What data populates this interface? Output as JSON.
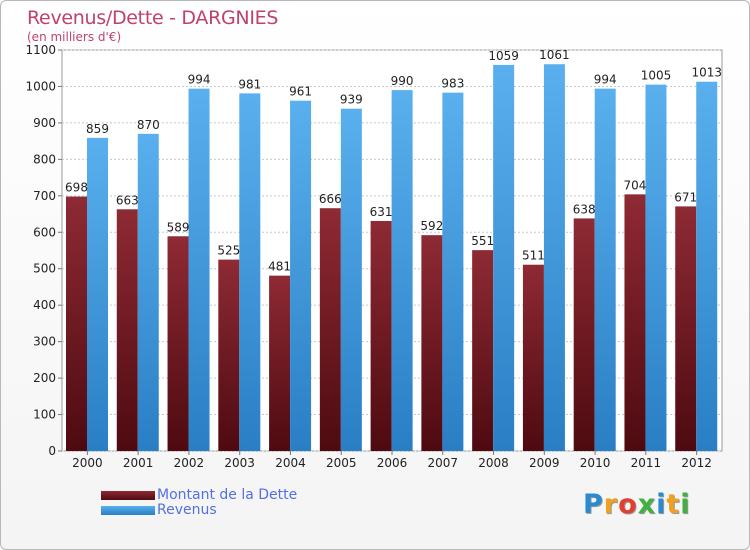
{
  "chart_data": {
    "type": "bar",
    "title": "Revenus/Dette - DARGNIES",
    "subtitle": "(en milliers d'€)",
    "categories": [
      "2000",
      "2001",
      "2002",
      "2003",
      "2004",
      "2005",
      "2006",
      "2007",
      "2008",
      "2009",
      "2010",
      "2011",
      "2012"
    ],
    "series": [
      {
        "name": "Montant de la Dette",
        "color": "#7a1f28",
        "values": [
          698,
          663,
          589,
          525,
          481,
          666,
          631,
          592,
          551,
          511,
          638,
          704,
          671
        ]
      },
      {
        "name": "Revenus",
        "color": "#3f9ee0",
        "values": [
          859,
          870,
          994,
          981,
          961,
          939,
          990,
          983,
          1059,
          1061,
          994,
          1005,
          1013
        ]
      }
    ],
    "ylim": [
      0,
      1100
    ],
    "yticks": [
      0,
      100,
      200,
      300,
      400,
      500,
      600,
      700,
      800,
      900,
      1000,
      1100
    ],
    "grid": true,
    "data_labels": true,
    "legend_position": "bottom-left"
  },
  "brand": {
    "letters": [
      "P",
      "r",
      "o",
      "x",
      "i",
      "t",
      "i"
    ],
    "colors": [
      "#2a8ad0",
      "#f0a020",
      "#e04030",
      "#40b040",
      "#2a8ad0",
      "#f0a020",
      "#40b040"
    ]
  }
}
